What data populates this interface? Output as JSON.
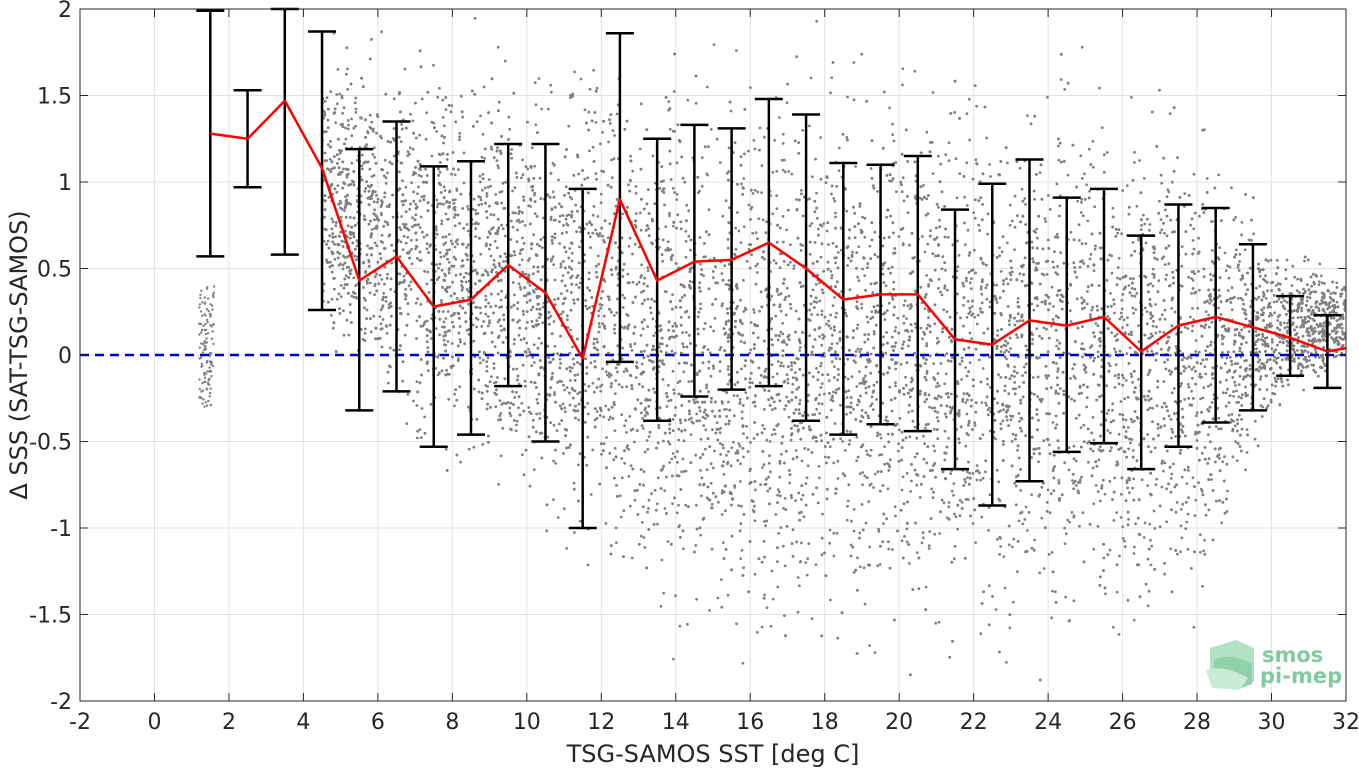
{
  "chart_data": {
    "type": "scatter",
    "title": "",
    "xlabel": "TSG-SAMOS SST [deg C]",
    "ylabel": "Δ SSS (SAT-TSG-SAMOS)",
    "xlim": [
      -2,
      32
    ],
    "ylim": [
      -2,
      2
    ],
    "xticks": [
      "-2",
      "0",
      "2",
      "4",
      "6",
      "8",
      "10",
      "12",
      "14",
      "16",
      "18",
      "20",
      "22",
      "24",
      "26",
      "28",
      "30",
      "32"
    ],
    "yticks": [
      "2",
      "1.5",
      "1",
      "0.5",
      "0",
      "-0.5",
      "-1",
      "-1.5",
      "-2"
    ],
    "grid": true,
    "colors": {
      "scatter": "#808080",
      "mean": "#ff0000",
      "errorbar": "#000000",
      "zero": "#0000cc"
    },
    "series": [
      {
        "role": "bin-mean-with-errorbars",
        "x": [
          1.5,
          2.5,
          3.5,
          4.5,
          5.5,
          6.5,
          7.5,
          8.5,
          9.5,
          10.5,
          11.5,
          12.5,
          13.5,
          14.5,
          15.5,
          16.5,
          17.5,
          18.5,
          19.5,
          20.5,
          21.5,
          22.5,
          23.5,
          24.5,
          25.5,
          26.5,
          27.5,
          28.5,
          29.5,
          30.5,
          31.5,
          32
        ],
        "mean": [
          1.28,
          1.25,
          1.47,
          1.08,
          0.43,
          0.57,
          0.28,
          0.32,
          0.52,
          0.36,
          -0.02,
          0.9,
          0.43,
          0.54,
          0.55,
          0.65,
          0.5,
          0.32,
          0.35,
          0.35,
          0.09,
          0.06,
          0.2,
          0.17,
          0.22,
          0.02,
          0.17,
          0.22,
          0.16,
          0.1,
          0.02,
          0.04
        ],
        "upper": [
          1.99,
          1.53,
          2.0,
          1.87,
          1.19,
          1.35,
          1.09,
          1.12,
          1.22,
          1.22,
          0.96,
          1.86,
          1.25,
          1.33,
          1.31,
          1.48,
          1.39,
          1.11,
          1.1,
          1.15,
          0.84,
          0.99,
          1.13,
          0.91,
          0.96,
          0.69,
          0.87,
          0.85,
          0.64,
          0.34,
          0.23,
          null
        ],
        "lower": [
          0.57,
          0.97,
          0.58,
          0.26,
          -0.32,
          -0.21,
          -0.53,
          -0.46,
          -0.18,
          -0.5,
          -1.0,
          -0.04,
          -0.38,
          -0.24,
          -0.2,
          -0.18,
          -0.38,
          -0.46,
          -0.4,
          -0.44,
          -0.66,
          -0.87,
          -0.73,
          -0.56,
          -0.51,
          -0.66,
          -0.53,
          -0.39,
          -0.32,
          -0.12,
          -0.19,
          null
        ]
      },
      {
        "role": "zero-line",
        "y": 0
      }
    ],
    "scatter_envelope": {
      "x": [
        4.5,
        6,
        8,
        10,
        12,
        14,
        16,
        18,
        20,
        22,
        24,
        26,
        28,
        30,
        32
      ],
      "upper": [
        2.0,
        2.0,
        2.0,
        2.0,
        2.0,
        2.0,
        2.0,
        2.0,
        2.0,
        2.0,
        2.0,
        2.0,
        1.7,
        0.8,
        0.5
      ],
      "lower": [
        0.0,
        -0.6,
        -1.0,
        -1.3,
        -1.6,
        -1.9,
        -2.0,
        -2.0,
        -2.0,
        -2.0,
        -2.0,
        -2.0,
        -1.8,
        -0.5,
        -0.1
      ]
    }
  },
  "logo": {
    "line1": "smos",
    "line2": "pi-mep"
  }
}
